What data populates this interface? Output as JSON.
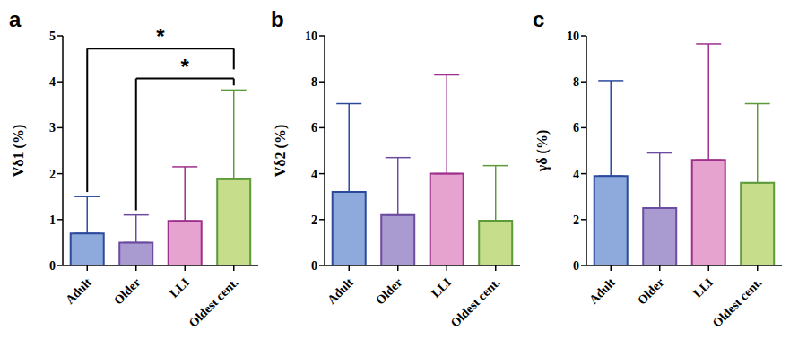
{
  "chart_data": [
    {
      "type": "bar",
      "title": "a",
      "y_label": "Vδ1 (%)",
      "categories": [
        "Adult",
        "Older",
        "LLI",
        "Oldest cent."
      ],
      "values": [
        0.7,
        0.5,
        0.97,
        1.88
      ],
      "errors": [
        0.8,
        0.6,
        1.18,
        1.94
      ],
      "colors": [
        "#8eaadc",
        "#a99ad0",
        "#e6a3cf",
        "#c6de8c"
      ],
      "ylim": [
        0,
        5
      ],
      "yticks": [
        0,
        1,
        2,
        3,
        4,
        5
      ],
      "grid": false,
      "annotations": [
        {
          "from": "Adult",
          "to": "Oldest cent.",
          "text": "*"
        },
        {
          "from": "Older",
          "to": "Oldest cent.",
          "text": "*"
        }
      ]
    },
    {
      "type": "bar",
      "title": "b",
      "y_label": "Vδ2 (%)",
      "categories": [
        "Adult",
        "Older",
        "LLI",
        "Oldest cent."
      ],
      "values": [
        3.2,
        2.2,
        4.0,
        1.95
      ],
      "errors": [
        3.85,
        2.5,
        4.3,
        2.4
      ],
      "colors": [
        "#8eaadc",
        "#a99ad0",
        "#e6a3cf",
        "#c6de8c"
      ],
      "ylim": [
        0,
        10
      ],
      "yticks": [
        0,
        2,
        4,
        6,
        8,
        10
      ],
      "grid": false
    },
    {
      "type": "bar",
      "title": "c",
      "y_label": "γδ (%)",
      "categories": [
        "Adult",
        "Older",
        "LLI",
        "Oldest cent."
      ],
      "values": [
        3.9,
        2.5,
        4.6,
        3.6
      ],
      "errors": [
        4.15,
        2.4,
        5.05,
        3.45
      ],
      "colors": [
        "#8eaadc",
        "#a99ad0",
        "#e6a3cf",
        "#c6de8c"
      ],
      "ylim": [
        0,
        10
      ],
      "yticks": [
        0,
        2,
        4,
        6,
        8,
        10
      ],
      "grid": false
    }
  ]
}
